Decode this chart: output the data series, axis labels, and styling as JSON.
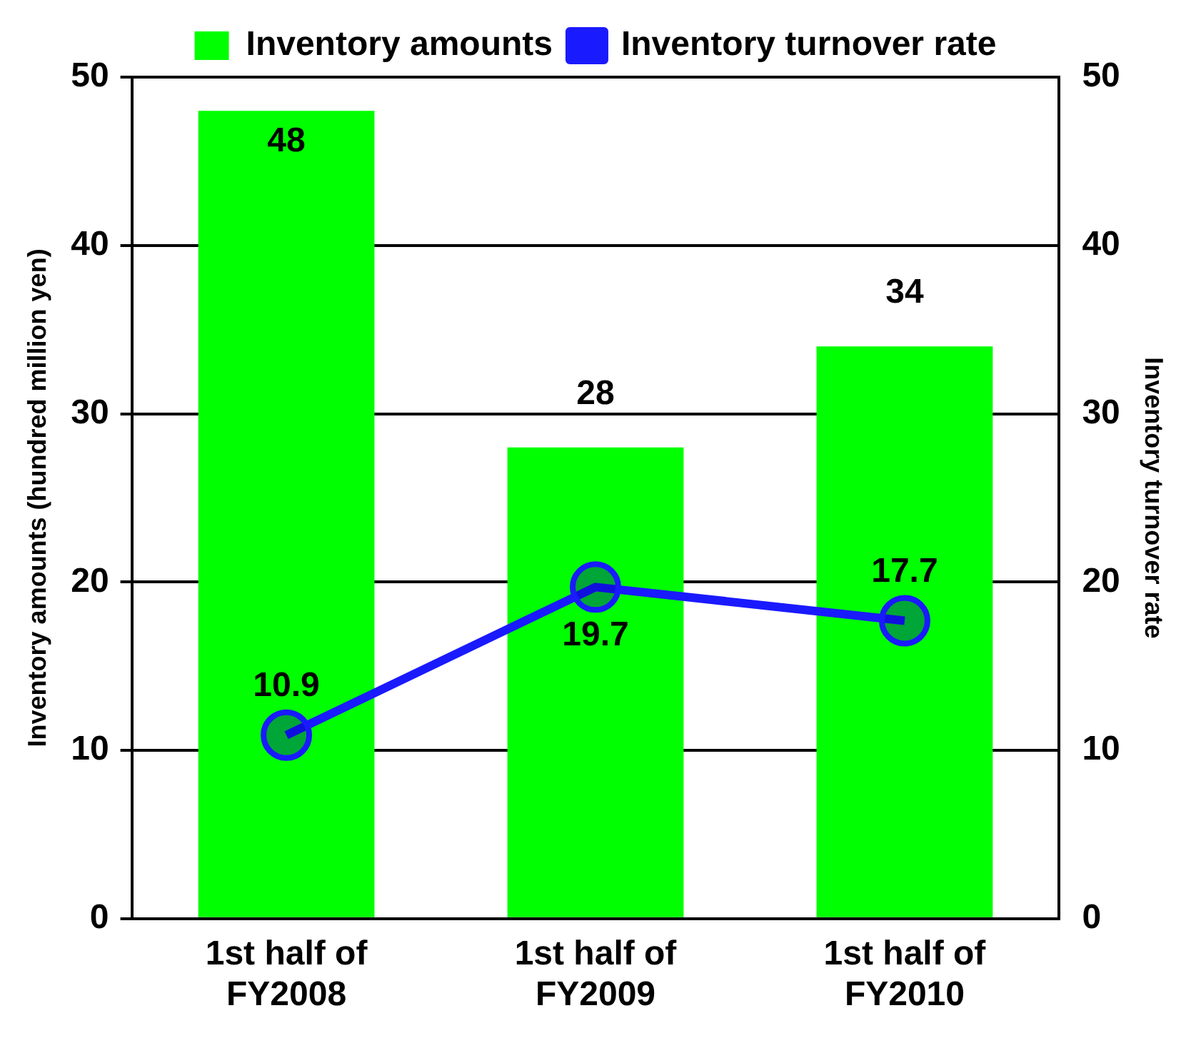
{
  "chart_data": {
    "type": "bar",
    "categories": [
      "1st half of FY2008",
      "1st half of FY2009",
      "1st half of FY2010"
    ],
    "ylabel": "Inventory amounts (hundred million yen)",
    "y2label": "Inventory turnover rate",
    "series": [
      {
        "name": "Inventory amounts",
        "color": "#00ff00",
        "values": [
          48,
          28,
          34
        ]
      },
      {
        "name": "Inventory turnover rate",
        "type": "line",
        "axis": "y2",
        "color": "#1a1aff",
        "values": [
          10.9,
          19.7,
          17.7
        ]
      }
    ],
    "ylim": [
      0,
      50
    ],
    "yticks": [
      0,
      10,
      20,
      30,
      40,
      50
    ],
    "y2lim": [
      0,
      50
    ],
    "y2ticks": [
      0,
      10,
      20,
      30,
      40,
      50
    ],
    "grid": "y",
    "legend": "top",
    "marker": "circle",
    "line_style": "solid",
    "data_labels": true
  }
}
